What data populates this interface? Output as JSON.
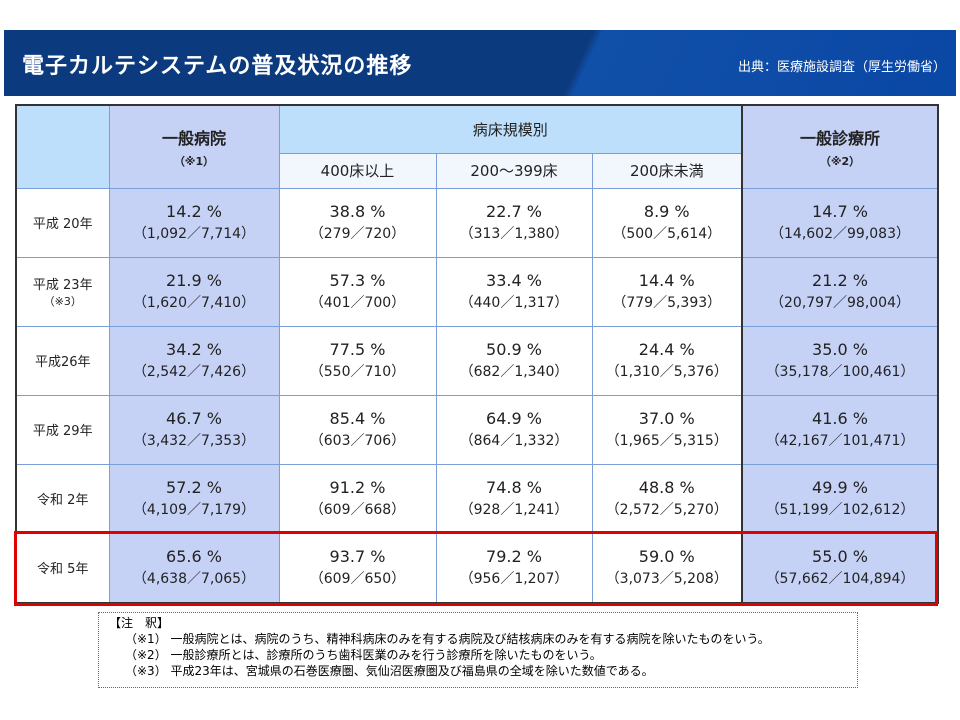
{
  "header": {
    "title": "電子カルテシステムの普及状況の推移",
    "source": "出典：医療施設調査（厚生労働省）"
  },
  "table": {
    "col_general_hospital": "一般病院",
    "col_general_hospital_note": "（※1）",
    "col_bed_scale": "病床規模別",
    "sub_cols": [
      "400床以上",
      "200〜399床",
      "200床未満"
    ],
    "col_clinic": "一般診療所",
    "col_clinic_note": "（※2）",
    "rows": [
      {
        "year": "平成 20年",
        "note": "",
        "cells": [
          [
            "14.2 %",
            "（1,092／7,714）"
          ],
          [
            "38.8 %",
            "（279／720）"
          ],
          [
            "22.7 %",
            "（313／1,380）"
          ],
          [
            "8.9 %",
            "（500／5,614）"
          ],
          [
            "14.7 %",
            "（14,602／99,083）"
          ]
        ]
      },
      {
        "year": "平成 23年",
        "note": "（※3）",
        "cells": [
          [
            "21.9 %",
            "（1,620／7,410）"
          ],
          [
            "57.3 %",
            "（401／700）"
          ],
          [
            "33.4 %",
            "（440／1,317）"
          ],
          [
            "14.4 %",
            "（779／5,393）"
          ],
          [
            "21.2 %",
            "（20,797／98,004）"
          ]
        ]
      },
      {
        "year": "平成26年",
        "note": "",
        "cells": [
          [
            "34.2 %",
            "（2,542／7,426）"
          ],
          [
            "77.5 %",
            "（550／710）"
          ],
          [
            "50.9 %",
            "（682／1,340）"
          ],
          [
            "24.4 %",
            "（1,310／5,376）"
          ],
          [
            "35.0 %",
            "（35,178／100,461）"
          ]
        ]
      },
      {
        "year": "平成 29年",
        "note": "",
        "cells": [
          [
            "46.7 %",
            "（3,432／7,353）"
          ],
          [
            "85.4 %",
            "（603／706）"
          ],
          [
            "64.9 %",
            "（864／1,332）"
          ],
          [
            "37.0 %",
            "（1,965／5,315）"
          ],
          [
            "41.6 %",
            "（42,167／101,471）"
          ]
        ]
      },
      {
        "year": "令和 2年",
        "note": "",
        "cells": [
          [
            "57.2 %",
            "（4,109／7,179）"
          ],
          [
            "91.2 %",
            "（609／668）"
          ],
          [
            "74.8 %",
            "（928／1,241）"
          ],
          [
            "48.8 %",
            "（2,572／5,270）"
          ],
          [
            "49.9 %",
            "（51,199／102,612）"
          ]
        ]
      },
      {
        "year": "令和 5年",
        "note": "",
        "cells": [
          [
            "65.6 %",
            "（4,638／7,065）"
          ],
          [
            "93.7 %",
            "（609／650）"
          ],
          [
            "79.2 %",
            "（956／1,207）"
          ],
          [
            "59.0 %",
            "（3,073／5,208）"
          ],
          [
            "55.0 %",
            "（57,662／104,894）"
          ]
        ]
      }
    ]
  },
  "notes": {
    "heading": "【注　釈】",
    "items": [
      "（※1） 一般病院とは、病院のうち、精神科病床のみを有する病院及び結核病床のみを有する病院を除いたものをいう。",
      "（※2） 一般診療所とは、診療所のうち歯科医業のみを行う診療所を除いたものをいう。",
      "（※3） 平成23年は、宮城県の石巻医療圏、気仙沼医療圏及び福島県の全域を除いた数値である。"
    ]
  }
}
